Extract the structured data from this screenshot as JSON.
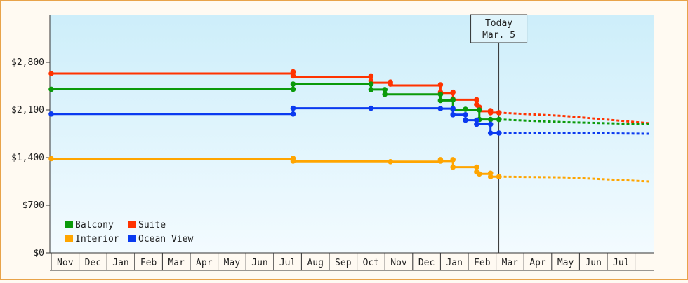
{
  "chart_data": {
    "type": "line",
    "x_axis": {
      "months": [
        "Nov",
        "Dec",
        "Jan",
        "Feb",
        "Mar",
        "Apr",
        "May",
        "Jun",
        "Jul",
        "Aug",
        "Sep",
        "Oct",
        "Nov",
        "Dec",
        "Jan",
        "Feb",
        "Mar",
        "Apr",
        "May",
        "Jun",
        "Jul"
      ]
    },
    "y_axis": {
      "ylim": [
        0,
        3500
      ],
      "ticks": [
        0,
        700,
        1400,
        2100,
        2800
      ],
      "tick_labels": [
        "$0",
        "$700",
        "$1,400",
        "$2,100",
        "$2,800"
      ]
    },
    "today_marker": {
      "line1": "Today",
      "line2": "Mar. 5",
      "month_index": 16.1
    },
    "legend": [
      {
        "label": "Balcony",
        "color": "#0a9a0a"
      },
      {
        "label": "Suite",
        "color": "#ff3300"
      },
      {
        "label": "Interior",
        "color": "#ffa500"
      },
      {
        "label": "Ocean View",
        "color": "#0a3af0"
      }
    ],
    "series": [
      {
        "name": "Suite",
        "color": "#ff3300",
        "points": [
          [
            0,
            2635
          ],
          [
            8.7,
            2635
          ],
          [
            8.7,
            2580
          ],
          [
            11.5,
            2580
          ],
          [
            11.5,
            2500
          ],
          [
            12.2,
            2500
          ],
          [
            12.2,
            2460
          ],
          [
            14.0,
            2460
          ],
          [
            14.0,
            2350
          ],
          [
            14.45,
            2350
          ],
          [
            14.45,
            2250
          ],
          [
            15.3,
            2250
          ],
          [
            15.3,
            2150
          ],
          [
            15.4,
            2150
          ],
          [
            15.4,
            2080
          ],
          [
            15.8,
            2080
          ],
          [
            15.8,
            2060
          ],
          [
            16.1,
            2060
          ]
        ],
        "markers": [
          [
            0,
            2635
          ],
          [
            8.7,
            2660
          ],
          [
            8.7,
            2600
          ],
          [
            11.5,
            2600
          ],
          [
            11.5,
            2530
          ],
          [
            12.2,
            2510
          ],
          [
            12.2,
            2480
          ],
          [
            14.0,
            2470
          ],
          [
            14.0,
            2360
          ],
          [
            14.45,
            2360
          ],
          [
            14.45,
            2260
          ],
          [
            15.3,
            2250
          ],
          [
            15.3,
            2180
          ],
          [
            15.4,
            2140
          ],
          [
            15.8,
            2090
          ],
          [
            15.8,
            2060
          ],
          [
            16.1,
            2060
          ]
        ],
        "forecast": [
          [
            16.1,
            2060
          ],
          [
            18.5,
            2010
          ],
          [
            21.5,
            1905
          ]
        ]
      },
      {
        "name": "Balcony",
        "color": "#0a9a0a",
        "points": [
          [
            0,
            2405
          ],
          [
            8.7,
            2405
          ],
          [
            8.7,
            2480
          ],
          [
            11.5,
            2480
          ],
          [
            11.5,
            2400
          ],
          [
            12.0,
            2400
          ],
          [
            12.0,
            2330
          ],
          [
            14.0,
            2330
          ],
          [
            14.0,
            2240
          ],
          [
            14.45,
            2240
          ],
          [
            14.45,
            2100
          ],
          [
            15.4,
            2100
          ],
          [
            15.4,
            1960
          ],
          [
            16.1,
            1960
          ]
        ],
        "markers": [
          [
            0,
            2405
          ],
          [
            8.7,
            2405
          ],
          [
            8.7,
            2480
          ],
          [
            11.5,
            2480
          ],
          [
            11.5,
            2400
          ],
          [
            12.0,
            2400
          ],
          [
            12.0,
            2330
          ],
          [
            14.0,
            2330
          ],
          [
            14.0,
            2240
          ],
          [
            14.45,
            2250
          ],
          [
            14.45,
            2110
          ],
          [
            14.9,
            2110
          ],
          [
            15.4,
            2100
          ],
          [
            15.4,
            1960
          ],
          [
            15.8,
            1960
          ],
          [
            16.1,
            1960
          ]
        ],
        "forecast": [
          [
            16.1,
            1960
          ],
          [
            18.5,
            1920
          ],
          [
            21.5,
            1890
          ]
        ]
      },
      {
        "name": "Ocean View",
        "color": "#0a3af0",
        "points": [
          [
            0,
            2040
          ],
          [
            8.7,
            2040
          ],
          [
            8.7,
            2125
          ],
          [
            14.0,
            2125
          ],
          [
            14.0,
            2120
          ],
          [
            14.45,
            2120
          ],
          [
            14.45,
            2030
          ],
          [
            14.9,
            2030
          ],
          [
            14.9,
            1950
          ],
          [
            15.3,
            1950
          ],
          [
            15.3,
            1890
          ],
          [
            15.8,
            1890
          ],
          [
            15.8,
            1760
          ],
          [
            16.1,
            1760
          ]
        ],
        "markers": [
          [
            0,
            2040
          ],
          [
            8.7,
            2040
          ],
          [
            8.7,
            2125
          ],
          [
            11.5,
            2125
          ],
          [
            14.0,
            2120
          ],
          [
            14.45,
            2120
          ],
          [
            14.45,
            2030
          ],
          [
            14.9,
            2030
          ],
          [
            14.9,
            1950
          ],
          [
            15.3,
            1950
          ],
          [
            15.3,
            1890
          ],
          [
            15.8,
            1890
          ],
          [
            15.8,
            1760
          ],
          [
            16.1,
            1760
          ]
        ],
        "forecast": [
          [
            16.1,
            1760
          ],
          [
            18.5,
            1760
          ],
          [
            21.5,
            1750
          ]
        ]
      },
      {
        "name": "Interior",
        "color": "#ffa500",
        "points": [
          [
            0,
            1385
          ],
          [
            8.7,
            1385
          ],
          [
            8.7,
            1345
          ],
          [
            12.2,
            1345
          ],
          [
            12.2,
            1340
          ],
          [
            14.0,
            1340
          ],
          [
            14.0,
            1350
          ],
          [
            14.45,
            1350
          ],
          [
            14.45,
            1260
          ],
          [
            15.3,
            1260
          ],
          [
            15.3,
            1180
          ],
          [
            15.4,
            1180
          ],
          [
            15.4,
            1160
          ],
          [
            15.8,
            1160
          ],
          [
            15.8,
            1120
          ],
          [
            16.1,
            1120
          ]
        ],
        "markers": [
          [
            0,
            1385
          ],
          [
            8.7,
            1390
          ],
          [
            8.7,
            1350
          ],
          [
            12.2,
            1340
          ],
          [
            14.0,
            1350
          ],
          [
            14.0,
            1370
          ],
          [
            14.45,
            1370
          ],
          [
            14.45,
            1260
          ],
          [
            15.3,
            1260
          ],
          [
            15.3,
            1190
          ],
          [
            15.4,
            1160
          ],
          [
            15.8,
            1170
          ],
          [
            15.8,
            1120
          ],
          [
            16.1,
            1120
          ]
        ],
        "forecast": [
          [
            16.1,
            1120
          ],
          [
            18.5,
            1110
          ],
          [
            21.5,
            1050
          ]
        ]
      }
    ]
  }
}
